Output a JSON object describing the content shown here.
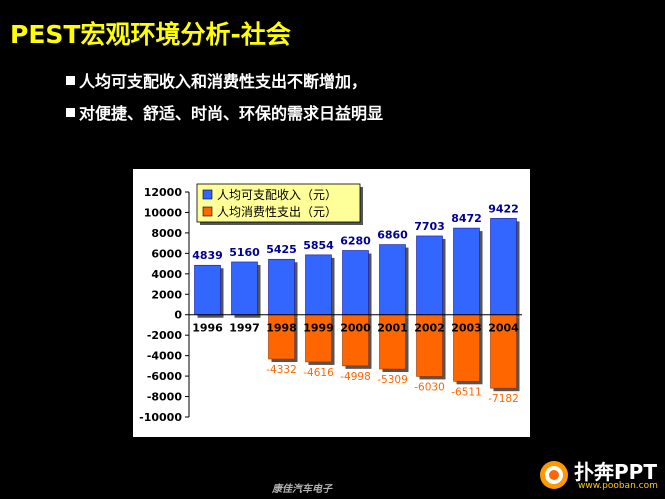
{
  "slide": {
    "title": "PEST宏观环境分析-社会",
    "bullets": [
      "人均可支配收入和消费性支出不断增加，",
      "对便捷、舒适、时尚、环保的需求日益明显"
    ],
    "footer": "康佳汽车电子",
    "logo": {
      "text": "扑奔PPT",
      "url": "www.pooban.com"
    }
  },
  "chart_data": {
    "type": "bar",
    "categories": [
      "1996",
      "1997",
      "1998",
      "1999",
      "2000",
      "2001",
      "2002",
      "2003",
      "2004"
    ],
    "series": [
      {
        "name": "人均可支配收入（元）",
        "color": "#3366ff",
        "values": [
          4839,
          5160,
          5425,
          5854,
          6280,
          6860,
          7703,
          8472,
          9422
        ]
      },
      {
        "name": "人均消费性支出（元）",
        "color": "#ff6600",
        "values": [
          null,
          null,
          -4332,
          -4616,
          -4998,
          -5309,
          -6030,
          -6511,
          -7182
        ]
      }
    ],
    "ylim": [
      -10000,
      12000
    ],
    "yticks": [
      12000,
      10000,
      8000,
      6000,
      4000,
      2000,
      0,
      -2000,
      -4000,
      -6000,
      -8000,
      -10000
    ],
    "legend_position": "top-left",
    "legend_bg": "#ffff99",
    "income_label_color": "#000099",
    "expense_label_color": "#ff6600"
  }
}
